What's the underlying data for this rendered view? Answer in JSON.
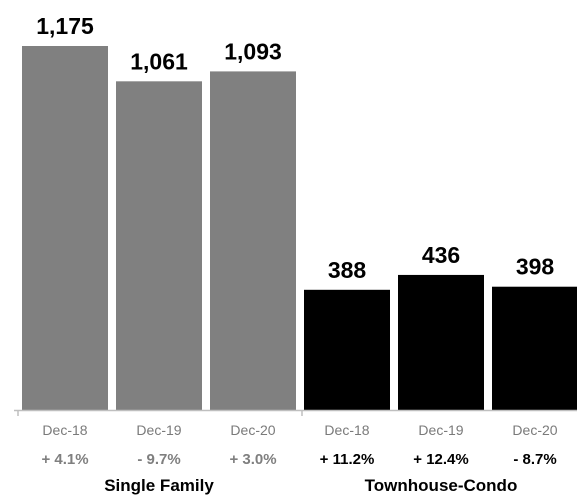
{
  "chart_data": {
    "type": "bar",
    "ylim": [
      0,
      1175
    ],
    "grid": false,
    "legend": "none",
    "groups": [
      {
        "name": "Single Family",
        "color": "#808080",
        "change_color": "#7f7f7f",
        "bars": [
          {
            "category": "Dec-18",
            "value": 1175,
            "value_label": "1,175",
            "change": "+ 4.1%"
          },
          {
            "category": "Dec-19",
            "value": 1061,
            "value_label": "1,061",
            "change": "- 9.7%"
          },
          {
            "category": "Dec-20",
            "value": 1093,
            "value_label": "1,093",
            "change": "+ 3.0%"
          }
        ]
      },
      {
        "name": "Townhouse-Condo",
        "color": "#000000",
        "change_color": "#000000",
        "bars": [
          {
            "category": "Dec-18",
            "value": 388,
            "value_label": "388",
            "change": "+ 11.2%"
          },
          {
            "category": "Dec-19",
            "value": 436,
            "value_label": "436",
            "change": "+ 12.4%"
          },
          {
            "category": "Dec-20",
            "value": 398,
            "value_label": "398",
            "change": "- 8.7%"
          }
        ]
      }
    ],
    "axis_color": "#bfbfbf"
  }
}
